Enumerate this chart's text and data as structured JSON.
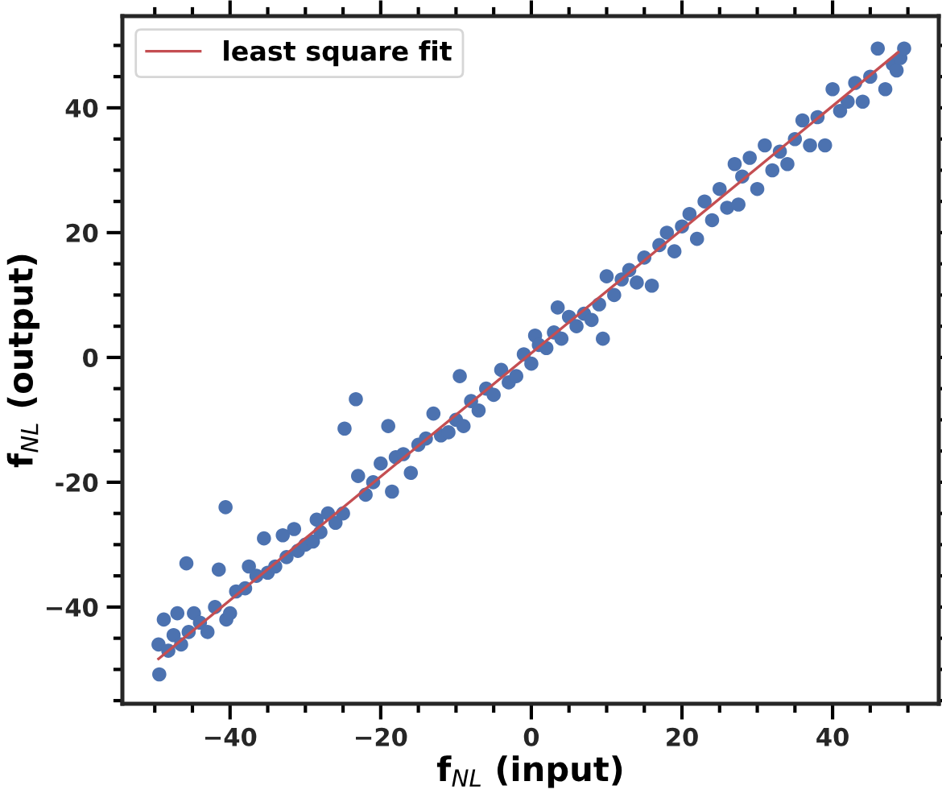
{
  "chart_data": {
    "type": "scatter",
    "xlabel": "f$_{NL}$ (input)",
    "ylabel": "f$_{NL}$ (output)",
    "xlim": [
      -54.3,
      54.1
    ],
    "ylim": [
      -55.5,
      54.7
    ],
    "xticks": [
      -40,
      -20,
      0,
      20,
      40
    ],
    "yticks": [
      -40,
      {
        "value": -20,
        "label": "-20"
      },
      0,
      20,
      40
    ],
    "grid": false,
    "legend": "top left",
    "series": [
      {
        "color": "#4c72b0",
        "marker": "circle",
        "x": [
          -49.4,
          -49.5,
          -48.8,
          -48.2,
          -47.5,
          -47.0,
          -46.5,
          -45.8,
          -45.5,
          -44.8,
          -44.0,
          -43.0,
          -42.0,
          -41.5,
          -40.6,
          -40.5,
          -40.0,
          -39.2,
          -38.0,
          -37.5,
          -36.5,
          -35.5,
          -35.0,
          -34.0,
          -33.0,
          -32.5,
          -31.5,
          -31.0,
          -30.0,
          -29.0,
          -28.5,
          -28.0,
          -27.0,
          -26.0,
          -25.0,
          -24.8,
          -23.3,
          -23.0,
          -22.0,
          -21.0,
          -20.0,
          -19.0,
          -18.5,
          -18.0,
          -17.0,
          -16.0,
          -15.0,
          -14.0,
          -13.0,
          -12.0,
          -11.0,
          -10.0,
          -9.5,
          -9.0,
          -8.0,
          -7.0,
          -6.0,
          -5.0,
          -4.0,
          -3.0,
          -2.0,
          -1.0,
          0.0,
          0.5,
          1.0,
          2.0,
          3.0,
          3.5,
          4.0,
          5.0,
          6.0,
          7.0,
          8.0,
          9.0,
          9.5,
          10.0,
          11.0,
          12.0,
          13.0,
          14.0,
          15.0,
          16.0,
          17.0,
          18.0,
          19.0,
          20.0,
          21.0,
          22.0,
          23.0,
          24.0,
          25.0,
          26.0,
          27.0,
          27.5,
          28.0,
          29.0,
          30.0,
          31.0,
          32.0,
          33.0,
          34.0,
          35.0,
          36.0,
          37.0,
          38.0,
          39.0,
          40.0,
          41.0,
          42.0,
          43.0,
          44.0,
          45.0,
          46.0,
          47.0,
          48.0,
          48.5,
          49.0,
          49.5
        ],
        "values": [
          -50.8,
          -46.0,
          -42.0,
          -47.0,
          -44.5,
          -41.0,
          -46.0,
          -33.0,
          -44.0,
          -41.0,
          -42.5,
          -44.0,
          -40.0,
          -34.0,
          -24.0,
          -42.0,
          -41.0,
          -37.5,
          -37.0,
          -33.5,
          -35.0,
          -29.0,
          -34.5,
          -33.5,
          -28.5,
          -32.0,
          -27.5,
          -31.0,
          -30.0,
          -29.5,
          -26.0,
          -28.0,
          -25.0,
          -26.5,
          -25.0,
          -11.4,
          -6.7,
          -19.0,
          -22.0,
          -20.0,
          -17.0,
          -11.0,
          -21.5,
          -16.0,
          -15.5,
          -18.5,
          -14.0,
          -13.0,
          -9.0,
          -12.5,
          -12.0,
          -10.0,
          -3.0,
          -11.0,
          -7.0,
          -8.5,
          -5.0,
          -6.0,
          -2.0,
          -4.0,
          -3.0,
          0.5,
          -1.0,
          3.5,
          2.0,
          1.5,
          4.0,
          8.0,
          3.0,
          6.5,
          5.0,
          7.0,
          6.0,
          8.5,
          3.0,
          13.0,
          10.0,
          12.5,
          14.0,
          12.0,
          16.0,
          11.5,
          18.0,
          20.0,
          17.0,
          21.0,
          23.0,
          19.0,
          25.0,
          22.0,
          27.0,
          24.0,
          31.0,
          24.5,
          29.0,
          32.0,
          27.0,
          34.0,
          30.0,
          33.0,
          31.0,
          35.0,
          38.0,
          34.0,
          38.5,
          34.0,
          43.0,
          39.5,
          41.0,
          44.0,
          41.0,
          45.0,
          49.5,
          43.0,
          47.0,
          46.0,
          48.0,
          49.5
        ]
      },
      {
        "type": "line",
        "name": "least square fit",
        "color": "#c44e52",
        "x": [
          -49.5,
          48.7
        ],
        "values": [
          -48.3,
          48.9
        ]
      }
    ]
  }
}
